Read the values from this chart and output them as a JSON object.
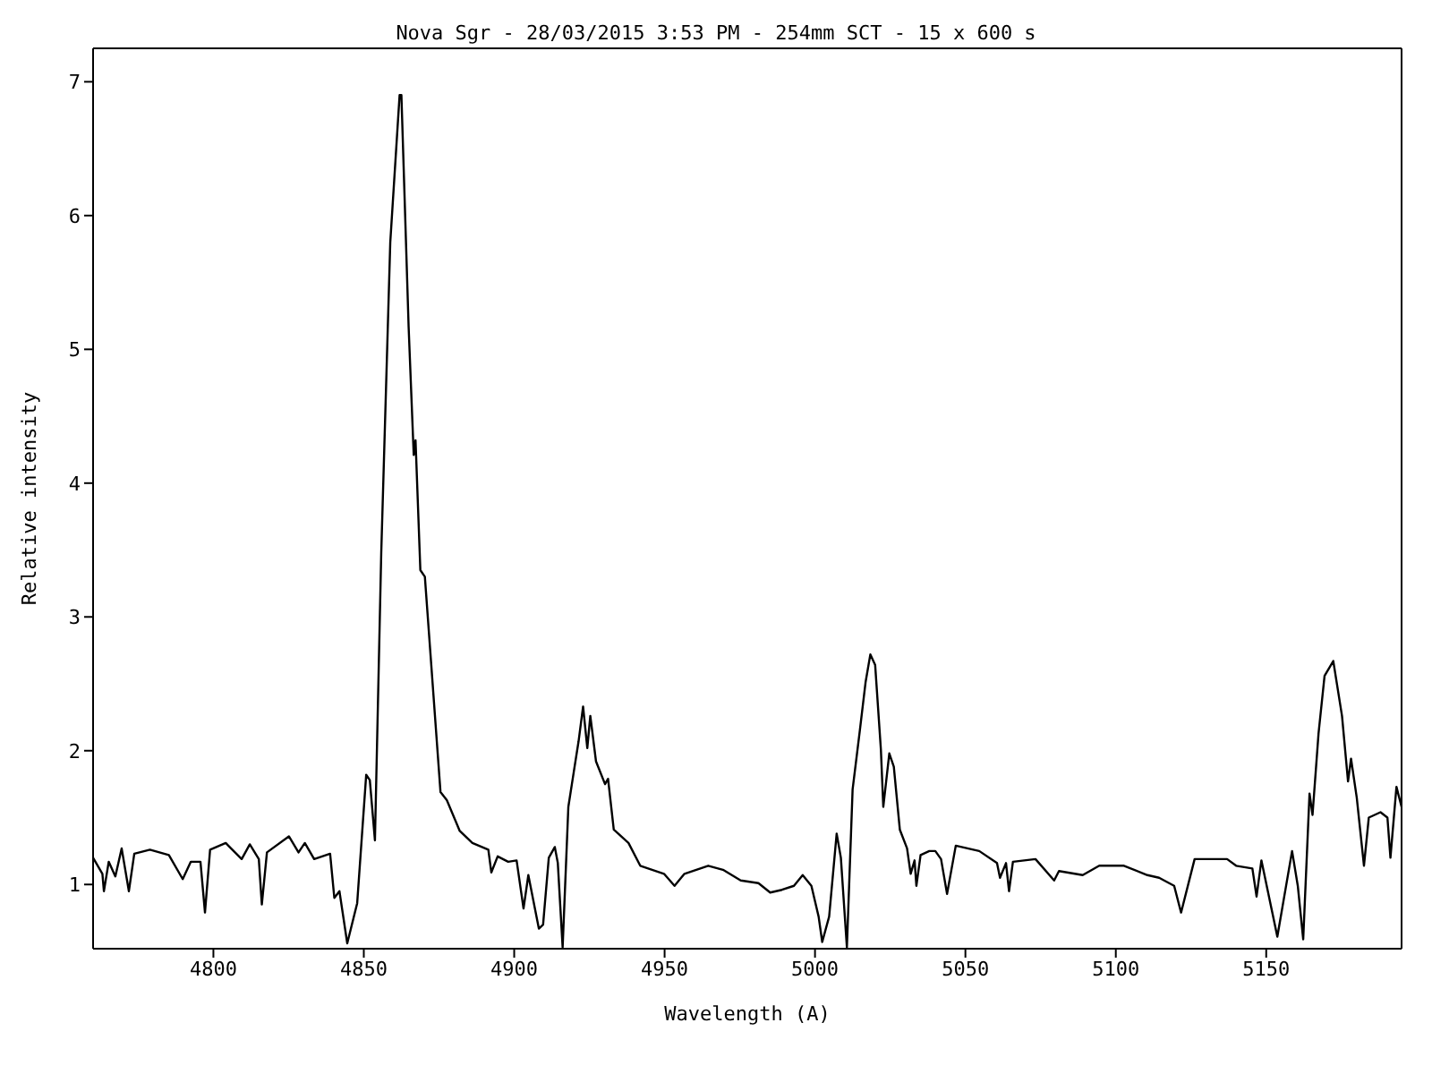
{
  "chart_data": {
    "type": "line",
    "title": "Nova Sgr - 28/03/2015 3:53 PM - 254mm SCT - 15 x 600 s",
    "xlabel": "Wavelength (A)",
    "ylabel": "Relative intensity",
    "xlim": [
      4760,
      5195
    ],
    "xticks": [
      4800,
      4850,
      4900,
      4950,
      5000,
      5050,
      5100,
      5150
    ],
    "ylim": [
      0.52,
      7.25
    ],
    "yticks": [
      1,
      2,
      3,
      4,
      5,
      6,
      7
    ],
    "legend": false,
    "marker": "none",
    "line_style": "solid",
    "series": [
      {
        "color": "#000000",
        "x": [
          4760,
          4763.1,
          4763.6,
          4765.2,
          4767.4,
          4769.5,
          4771.9,
          4773.7,
          4778.9,
          4785.2,
          4789.8,
          4792.5,
          4795.7,
          4797.2,
          4798.9,
          4804.1,
          4809.4,
          4812.1,
          4815.1,
          4816.1,
          4817.8,
          4825.1,
          4828.3,
          4830.4,
          4833.5,
          4838.8,
          4840.2,
          4841.9,
          4844.5,
          4847.8,
          4850.8,
          4852,
          4853.7,
          4855.8,
          4858.8,
          4861.9,
          4862.5,
          4864.9,
          4866.6,
          4867.2,
          4868.8,
          4870.3,
          4875.5,
          4877.6,
          4881.9,
          4886.1,
          4891.4,
          4892.4,
          4894.5,
          4898,
          4900.8,
          4903.1,
          4904.7,
          4908.2,
          4909.6,
          4911.5,
          4913.5,
          4914.5,
          4916.1,
          4918,
          4919.8,
          4921.4,
          4922.9,
          4924.3,
          4925.3,
          4927.2,
          4930.2,
          4931.2,
          4933.1,
          4938,
          4941.9,
          4949.8,
          4953.3,
          4956.6,
          4964.5,
          4969.4,
          4975.3,
          4981.2,
          4985.1,
          4989,
          4993,
          4995.9,
          4998.8,
          5001.2,
          5002.4,
          5004.7,
          5007.2,
          5008.6,
          5010.6,
          5012.5,
          5014.9,
          5016.8,
          5018.4,
          5020,
          5021.9,
          5022.7,
          5024.7,
          5026.2,
          5028.2,
          5030.6,
          5031.8,
          5033.1,
          5033.7,
          5035.1,
          5038,
          5040,
          5041.9,
          5043.9,
          5046.8,
          5054.6,
          5060.5,
          5061.5,
          5063.5,
          5064.5,
          5065.8,
          5073.3,
          5079.5,
          5081.1,
          5089,
          5094.5,
          5102.7,
          5110.5,
          5114.4,
          5119.4,
          5121.7,
          5126.2,
          5137,
          5140,
          5145.4,
          5146.8,
          5148.4,
          5153.7,
          5158.6,
          5160.5,
          5162.3,
          5164.4,
          5165.4,
          5167.4,
          5169.4,
          5172.3,
          5175.2,
          5177.2,
          5178.2,
          5180.1,
          5182.5,
          5184.1,
          5188,
          5190.3,
          5191.3,
          5193.3,
          5195
        ],
        "values": [
          1.2,
          1.08,
          0.95,
          1.17,
          1.06,
          1.27,
          0.95,
          1.23,
          1.26,
          1.22,
          1.04,
          1.17,
          1.17,
          0.79,
          1.26,
          1.31,
          1.19,
          1.3,
          1.19,
          0.85,
          1.24,
          1.36,
          1.24,
          1.31,
          1.19,
          1.23,
          0.9,
          0.95,
          0.56,
          0.86,
          1.82,
          1.78,
          1.33,
          3.48,
          5.8,
          6.9,
          6.9,
          5.17,
          4.21,
          4.32,
          3.35,
          3.3,
          1.69,
          1.63,
          1.4,
          1.31,
          1.26,
          1.09,
          1.21,
          1.17,
          1.18,
          0.82,
          1.07,
          0.67,
          0.7,
          1.2,
          1.28,
          1.16,
          0.53,
          1.58,
          1.84,
          2.07,
          2.33,
          2.02,
          2.26,
          1.92,
          1.75,
          1.79,
          1.41,
          1.31,
          1.14,
          1.08,
          0.99,
          1.08,
          1.14,
          1.11,
          1.03,
          1.01,
          0.94,
          0.96,
          0.99,
          1.07,
          0.99,
          0.76,
          0.57,
          0.76,
          1.38,
          1.2,
          0.53,
          1.71,
          2.15,
          2.51,
          2.72,
          2.64,
          2.01,
          1.58,
          1.98,
          1.88,
          1.41,
          1.27,
          1.08,
          1.18,
          0.99,
          1.22,
          1.25,
          1.25,
          1.19,
          0.93,
          1.29,
          1.25,
          1.16,
          1.05,
          1.16,
          0.95,
          1.17,
          1.19,
          1.03,
          1.1,
          1.07,
          1.14,
          1.14,
          1.07,
          1.05,
          0.99,
          0.79,
          1.19,
          1.19,
          1.14,
          1.12,
          0.91,
          1.18,
          0.61,
          1.25,
          0.99,
          0.59,
          1.68,
          1.52,
          2.13,
          2.56,
          2.67,
          2.26,
          1.77,
          1.94,
          1.65,
          1.14,
          1.5,
          1.54,
          1.5,
          1.2,
          1.73,
          1.58
        ]
      }
    ]
  }
}
